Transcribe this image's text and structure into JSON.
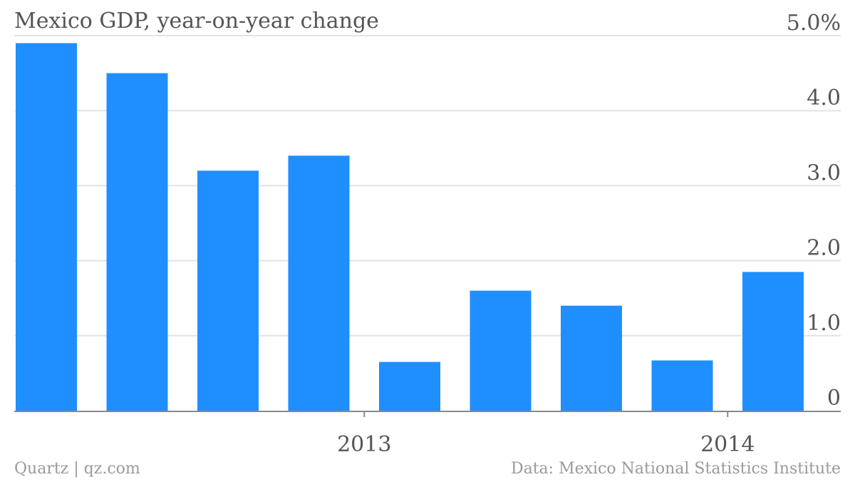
{
  "chart_data": {
    "type": "bar",
    "title": "Mexico GDP, year-on-year change",
    "categories": [
      "",
      "",
      "",
      "",
      "",
      "",
      "",
      "",
      ""
    ],
    "values": [
      4.9,
      4.5,
      3.2,
      3.4,
      0.65,
      1.6,
      1.4,
      0.67,
      1.85
    ],
    "ylim": [
      0,
      5
    ],
    "yticks": [
      {
        "value": 0,
        "label": "0"
      },
      {
        "value": 1,
        "label": "1.0"
      },
      {
        "value": 2,
        "label": "2.0"
      },
      {
        "value": 3,
        "label": "3.0"
      },
      {
        "value": 4,
        "label": "4.0"
      },
      {
        "value": 5,
        "label": "5.0%"
      }
    ],
    "xticks": [
      {
        "after_index": 3,
        "label": "2013"
      },
      {
        "after_index": 7,
        "label": "2014"
      }
    ],
    "bar_color": "#1f8fff",
    "grid_color": "#e3e3e3",
    "axis_color": "#888888",
    "grid": true,
    "yaxis_position": "right"
  },
  "footer": {
    "source_left": "Quartz | qz.com",
    "source_right": "Data: Mexico National Statistics Institute"
  }
}
